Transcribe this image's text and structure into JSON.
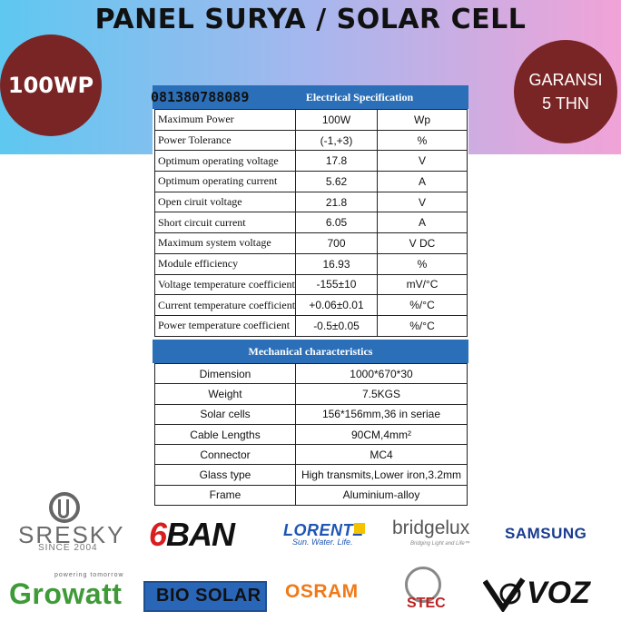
{
  "title": "PANEL SURYA / SOLAR CELL",
  "badge_left": "100WP",
  "badge_right": {
    "line1": "GARANSI",
    "line2": "5 THN"
  },
  "phone": "081380788089",
  "electrical": {
    "heading": "Electrical  Specification",
    "rows": [
      {
        "name": "Maximum Power",
        "value": "100W",
        "unit": "Wp"
      },
      {
        "name": "Power Tolerance",
        "value": "(-1,+3)",
        "unit": "%"
      },
      {
        "name": "Optimum operating voltage",
        "value": "17.8",
        "unit": "V"
      },
      {
        "name": "Optimum operating current",
        "value": "5.62",
        "unit": "A"
      },
      {
        "name": "Open ciruit voltage",
        "value": "21.8",
        "unit": "V"
      },
      {
        "name": "Short circuit current",
        "value": "6.05",
        "unit": "A"
      },
      {
        "name": "Maximum system voltage",
        "value": "700",
        "unit": "V  DC"
      },
      {
        "name": "Module efficiency",
        "value": "16.93",
        "unit": "%"
      },
      {
        "name": "Voltage temperature coefficient",
        "value": "-155±10",
        "unit": "mV/°C"
      },
      {
        "name": "Current temperature coefficient",
        "value": "+0.06±0.01",
        "unit": "%/°C"
      },
      {
        "name": "Power temperature coefficient",
        "value": "-0.5±0.05",
        "unit": "%/°C"
      }
    ]
  },
  "mechanical": {
    "heading": "Mechanical characteristics",
    "rows": [
      {
        "name": "Dimension",
        "value": "1000*670*30"
      },
      {
        "name": "Weight",
        "value": "7.5KGS"
      },
      {
        "name": "Solar cells",
        "value": "156*156mm,36 in seriae"
      },
      {
        "name": "Cable Lengths",
        "value": "90CM,4mm²"
      },
      {
        "name": "Connector",
        "value": "MC4"
      },
      {
        "name": "Glass type",
        "value": "High transmits,Lower iron,3.2mm"
      },
      {
        "name": "Frame",
        "value": "Aluminium-alloy"
      }
    ]
  },
  "brands": {
    "sresky": "SRESKY",
    "sresky_sub": "SINCE 2004",
    "gban_6": "6",
    "gban_rest": "BAN",
    "lorentz": "LORENTZ",
    "lorentz_sub": "Sun. Water. Life.",
    "bridgelux": "bridgelux",
    "bridgelux_sub": "Bridging Light and Life™",
    "samsung": "SAMSUNG",
    "growatt": "Growatt",
    "growatt_sub": "powering tomorrow",
    "biosolar": "BIO SOLAR",
    "osram": "OSRAM",
    "stec": "STEC",
    "voz": "VOZ"
  }
}
